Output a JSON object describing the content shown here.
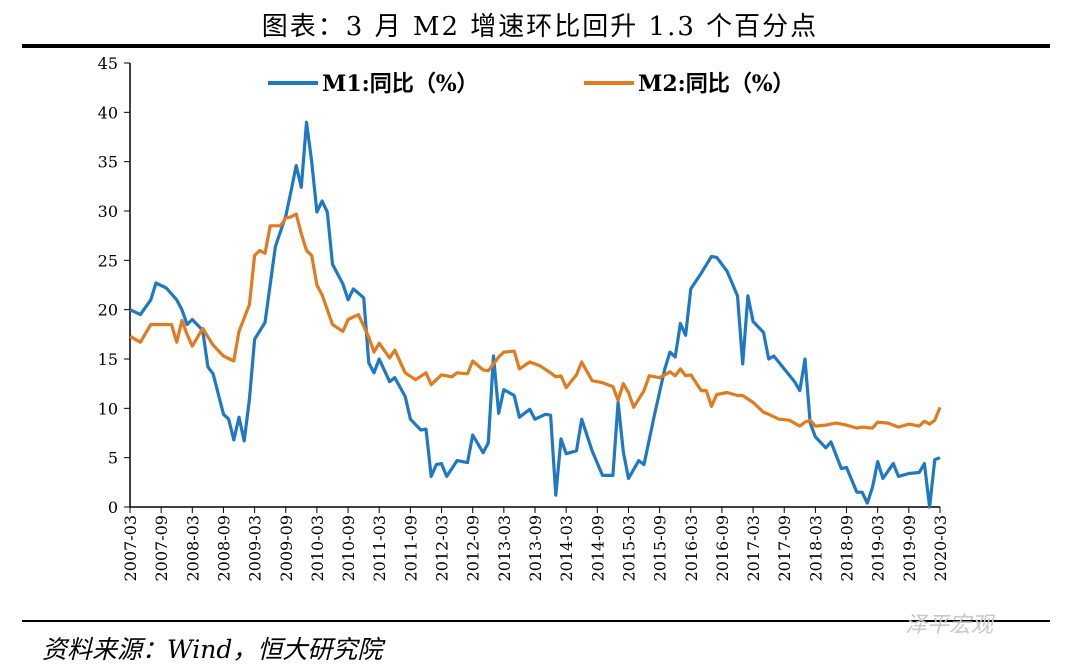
{
  "header": {
    "title": "图表：3 月 M2 增速环比回升 1.3 个百分点"
  },
  "footer": {
    "source": "资料来源：Wind，恒大研究院",
    "watermark": "泽平宏观"
  },
  "colors": {
    "m1": "#1f78c4",
    "m2": "#e07b1f",
    "axis": "#000000"
  },
  "chart_data": {
    "type": "line",
    "title": "",
    "xlabel": "",
    "ylabel": "",
    "ylim": [
      0,
      45
    ],
    "yticks": [
      0,
      5,
      10,
      15,
      20,
      25,
      30,
      35,
      40,
      45
    ],
    "xticks": [
      "2007-03",
      "2007-09",
      "2008-03",
      "2008-09",
      "2009-03",
      "2009-09",
      "2010-03",
      "2010-09",
      "2011-03",
      "2011-09",
      "2012-03",
      "2012-09",
      "2013-03",
      "2013-09",
      "2014-03",
      "2014-09",
      "2015-03",
      "2015-09",
      "2016-03",
      "2016-09",
      "2017-03",
      "2017-09",
      "2018-03",
      "2018-09",
      "2019-03",
      "2019-09",
      "2020-03"
    ],
    "grid": false,
    "legend": "top",
    "series": [
      {
        "name": "M1:同比（%）",
        "color": "#1f78c4",
        "points": [
          [
            "2007-03",
            20.0
          ],
          [
            "2007-05",
            19.5
          ],
          [
            "2007-07",
            21.0
          ],
          [
            "2007-08",
            22.7
          ],
          [
            "2007-10",
            22.2
          ],
          [
            "2007-12",
            21.0
          ],
          [
            "2008-01",
            20.0
          ],
          [
            "2008-02",
            18.5
          ],
          [
            "2008-03",
            19.0
          ],
          [
            "2008-05",
            17.9
          ],
          [
            "2008-06",
            14.2
          ],
          [
            "2008-07",
            13.5
          ],
          [
            "2008-09",
            9.4
          ],
          [
            "2008-10",
            8.9
          ],
          [
            "2008-11",
            6.8
          ],
          [
            "2008-12",
            9.1
          ],
          [
            "2009-01",
            6.7
          ],
          [
            "2009-02",
            10.9
          ],
          [
            "2009-03",
            17.0
          ],
          [
            "2009-05",
            18.7
          ],
          [
            "2009-07",
            26.4
          ],
          [
            "2009-09",
            29.5
          ],
          [
            "2009-10",
            32.0
          ],
          [
            "2009-11",
            34.6
          ],
          [
            "2009-12",
            32.4
          ],
          [
            "2010-01",
            39.0
          ],
          [
            "2010-02",
            35.0
          ],
          [
            "2010-03",
            29.9
          ],
          [
            "2010-04",
            31.0
          ],
          [
            "2010-05",
            29.9
          ],
          [
            "2010-06",
            24.6
          ],
          [
            "2010-08",
            22.6
          ],
          [
            "2010-09",
            21.0
          ],
          [
            "2010-10",
            22.1
          ],
          [
            "2010-12",
            21.2
          ],
          [
            "2011-01",
            14.6
          ],
          [
            "2011-02",
            13.6
          ],
          [
            "2011-03",
            15.0
          ],
          [
            "2011-05",
            12.7
          ],
          [
            "2011-06",
            13.1
          ],
          [
            "2011-08",
            11.2
          ],
          [
            "2011-09",
            8.9
          ],
          [
            "2011-11",
            7.8
          ],
          [
            "2011-12",
            7.9
          ],
          [
            "2012-01",
            3.1
          ],
          [
            "2012-02",
            4.3
          ],
          [
            "2012-03",
            4.4
          ],
          [
            "2012-04",
            3.1
          ],
          [
            "2012-06",
            4.7
          ],
          [
            "2012-08",
            4.5
          ],
          [
            "2012-09",
            7.3
          ],
          [
            "2012-11",
            5.5
          ],
          [
            "2012-12",
            6.5
          ],
          [
            "2013-01",
            15.3
          ],
          [
            "2013-02",
            9.5
          ],
          [
            "2013-03",
            11.9
          ],
          [
            "2013-05",
            11.3
          ],
          [
            "2013-06",
            9.1
          ],
          [
            "2013-08",
            9.9
          ],
          [
            "2013-09",
            8.9
          ],
          [
            "2013-11",
            9.4
          ],
          [
            "2013-12",
            9.3
          ],
          [
            "2014-01",
            1.2
          ],
          [
            "2014-02",
            6.9
          ],
          [
            "2014-03",
            5.4
          ],
          [
            "2014-05",
            5.7
          ],
          [
            "2014-06",
            8.9
          ],
          [
            "2014-08",
            5.7
          ],
          [
            "2014-10",
            3.2
          ],
          [
            "2014-12",
            3.2
          ],
          [
            "2015-01",
            10.6
          ],
          [
            "2015-02",
            5.6
          ],
          [
            "2015-03",
            2.9
          ],
          [
            "2015-05",
            4.7
          ],
          [
            "2015-06",
            4.3
          ],
          [
            "2015-08",
            9.3
          ],
          [
            "2015-10",
            14.0
          ],
          [
            "2015-11",
            15.7
          ],
          [
            "2015-12",
            15.2
          ],
          [
            "2016-01",
            18.6
          ],
          [
            "2016-02",
            17.4
          ],
          [
            "2016-03",
            22.1
          ],
          [
            "2016-05",
            23.7
          ],
          [
            "2016-07",
            25.4
          ],
          [
            "2016-08",
            25.3
          ],
          [
            "2016-10",
            23.9
          ],
          [
            "2016-12",
            21.4
          ],
          [
            "2017-01",
            14.5
          ],
          [
            "2017-02",
            21.4
          ],
          [
            "2017-03",
            18.8
          ],
          [
            "2017-05",
            17.7
          ],
          [
            "2017-06",
            15.0
          ],
          [
            "2017-07",
            15.3
          ],
          [
            "2017-09",
            14.0
          ],
          [
            "2017-11",
            12.7
          ],
          [
            "2017-12",
            11.8
          ],
          [
            "2018-01",
            15.0
          ],
          [
            "2018-02",
            8.5
          ],
          [
            "2018-03",
            7.1
          ],
          [
            "2018-05",
            6.0
          ],
          [
            "2018-06",
            6.6
          ],
          [
            "2018-08",
            3.9
          ],
          [
            "2018-09",
            4.0
          ],
          [
            "2018-11",
            1.5
          ],
          [
            "2018-12",
            1.5
          ],
          [
            "2019-01",
            0.4
          ],
          [
            "2019-02",
            2.0
          ],
          [
            "2019-03",
            4.6
          ],
          [
            "2019-04",
            2.9
          ],
          [
            "2019-06",
            4.4
          ],
          [
            "2019-07",
            3.1
          ],
          [
            "2019-09",
            3.4
          ],
          [
            "2019-11",
            3.5
          ],
          [
            "2019-12",
            4.4
          ],
          [
            "2020-01",
            0.0
          ],
          [
            "2020-02",
            4.8
          ],
          [
            "2020-03",
            5.0
          ]
        ]
      },
      {
        "name": "M2:同比（%）",
        "color": "#e07b1f",
        "points": [
          [
            "2007-03",
            17.3
          ],
          [
            "2007-05",
            16.7
          ],
          [
            "2007-07",
            18.5
          ],
          [
            "2007-09",
            18.5
          ],
          [
            "2007-11",
            18.5
          ],
          [
            "2007-12",
            16.7
          ],
          [
            "2008-01",
            18.9
          ],
          [
            "2008-02",
            17.5
          ],
          [
            "2008-03",
            16.3
          ],
          [
            "2008-05",
            18.1
          ],
          [
            "2008-07",
            16.4
          ],
          [
            "2008-09",
            15.3
          ],
          [
            "2008-11",
            14.8
          ],
          [
            "2008-12",
            17.8
          ],
          [
            "2009-02",
            20.5
          ],
          [
            "2009-03",
            25.5
          ],
          [
            "2009-04",
            26.0
          ],
          [
            "2009-05",
            25.7
          ],
          [
            "2009-06",
            28.5
          ],
          [
            "2009-08",
            28.5
          ],
          [
            "2009-09",
            29.3
          ],
          [
            "2009-10",
            29.4
          ],
          [
            "2009-11",
            29.7
          ],
          [
            "2009-12",
            27.7
          ],
          [
            "2010-01",
            26.0
          ],
          [
            "2010-02",
            25.5
          ],
          [
            "2010-03",
            22.5
          ],
          [
            "2010-04",
            21.5
          ],
          [
            "2010-06",
            18.5
          ],
          [
            "2010-08",
            17.8
          ],
          [
            "2010-09",
            19.0
          ],
          [
            "2010-11",
            19.5
          ],
          [
            "2011-01",
            17.2
          ],
          [
            "2011-02",
            15.7
          ],
          [
            "2011-03",
            16.6
          ],
          [
            "2011-05",
            15.1
          ],
          [
            "2011-06",
            15.9
          ],
          [
            "2011-08",
            13.6
          ],
          [
            "2011-10",
            12.9
          ],
          [
            "2011-12",
            13.6
          ],
          [
            "2012-01",
            12.4
          ],
          [
            "2012-03",
            13.4
          ],
          [
            "2012-05",
            13.2
          ],
          [
            "2012-06",
            13.6
          ],
          [
            "2012-08",
            13.5
          ],
          [
            "2012-09",
            14.8
          ],
          [
            "2012-11",
            13.9
          ],
          [
            "2012-12",
            13.8
          ],
          [
            "2013-02",
            15.2
          ],
          [
            "2013-03",
            15.7
          ],
          [
            "2013-05",
            15.8
          ],
          [
            "2013-06",
            14.0
          ],
          [
            "2013-08",
            14.7
          ],
          [
            "2013-10",
            14.3
          ],
          [
            "2013-12",
            13.6
          ],
          [
            "2014-01",
            13.2
          ],
          [
            "2014-02",
            13.3
          ],
          [
            "2014-03",
            12.1
          ],
          [
            "2014-05",
            13.4
          ],
          [
            "2014-06",
            14.7
          ],
          [
            "2014-08",
            12.8
          ],
          [
            "2014-10",
            12.6
          ],
          [
            "2014-12",
            12.2
          ],
          [
            "2015-01",
            10.8
          ],
          [
            "2015-02",
            12.5
          ],
          [
            "2015-03",
            11.6
          ],
          [
            "2015-04",
            10.1
          ],
          [
            "2015-06",
            11.8
          ],
          [
            "2015-07",
            13.3
          ],
          [
            "2015-09",
            13.1
          ],
          [
            "2015-11",
            13.7
          ],
          [
            "2015-12",
            13.3
          ],
          [
            "2016-01",
            14.0
          ],
          [
            "2016-02",
            13.3
          ],
          [
            "2016-03",
            13.4
          ],
          [
            "2016-05",
            11.8
          ],
          [
            "2016-06",
            11.8
          ],
          [
            "2016-07",
            10.2
          ],
          [
            "2016-08",
            11.4
          ],
          [
            "2016-10",
            11.6
          ],
          [
            "2016-12",
            11.3
          ],
          [
            "2017-01",
            11.3
          ],
          [
            "2017-03",
            10.6
          ],
          [
            "2017-05",
            9.6
          ],
          [
            "2017-06",
            9.4
          ],
          [
            "2017-08",
            8.9
          ],
          [
            "2017-10",
            8.8
          ],
          [
            "2017-12",
            8.2
          ],
          [
            "2018-01",
            8.6
          ],
          [
            "2018-02",
            8.8
          ],
          [
            "2018-03",
            8.2
          ],
          [
            "2018-05",
            8.3
          ],
          [
            "2018-07",
            8.5
          ],
          [
            "2018-09",
            8.3
          ],
          [
            "2018-11",
            8.0
          ],
          [
            "2018-12",
            8.1
          ],
          [
            "2019-02",
            8.0
          ],
          [
            "2019-03",
            8.6
          ],
          [
            "2019-05",
            8.5
          ],
          [
            "2019-07",
            8.1
          ],
          [
            "2019-09",
            8.4
          ],
          [
            "2019-11",
            8.2
          ],
          [
            "2019-12",
            8.7
          ],
          [
            "2020-01",
            8.4
          ],
          [
            "2020-02",
            8.8
          ],
          [
            "2020-03",
            10.1
          ]
        ]
      }
    ]
  }
}
